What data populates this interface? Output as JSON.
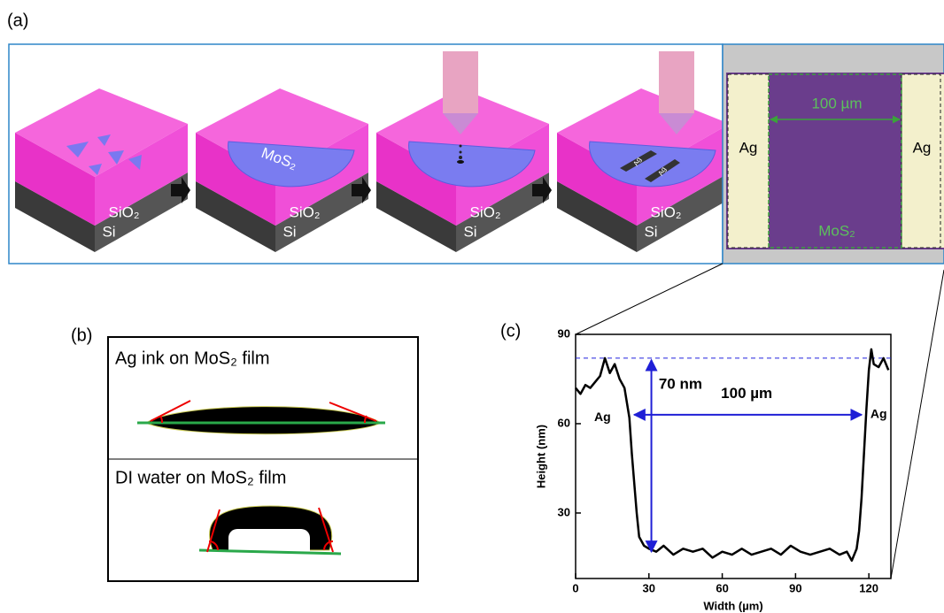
{
  "panel_a": {
    "label": "(a)",
    "tiles": [
      {
        "layers": [
          "SiO₂",
          "Si"
        ]
      },
      {
        "film": "MoS₂",
        "layers": [
          "SiO₂",
          "Si"
        ]
      },
      {
        "layers": [
          "SiO₂",
          "Si"
        ]
      },
      {
        "electrodes": [
          "Ag",
          "Ag"
        ],
        "layers": [
          "SiO₂",
          "Si"
        ]
      }
    ],
    "optical": {
      "electrodes": [
        "Ag",
        "Ag"
      ],
      "scale": "100 µm",
      "film": "MoS₂"
    }
  },
  "panel_b": {
    "label": "(b)",
    "captions": [
      "Ag ink on MoS₂ film",
      "DI water on MoS₂ film"
    ]
  },
  "chart_data": {
    "type": "line",
    "label": "(c)",
    "xlabel": "Width (µm)",
    "ylabel": "Height (nm)",
    "x": [
      0,
      2,
      4,
      6,
      8,
      10,
      12,
      14,
      16,
      18,
      20,
      22,
      23,
      24,
      25,
      26,
      28,
      30,
      33,
      36,
      40,
      44,
      48,
      52,
      56,
      60,
      64,
      68,
      72,
      76,
      80,
      84,
      88,
      92,
      96,
      100,
      104,
      108,
      111,
      113,
      115,
      116,
      117,
      118,
      119,
      120,
      121,
      122,
      124,
      126,
      128
    ],
    "series": [
      {
        "color": "#000000",
        "values": [
          72,
          70,
          73,
          72,
          74,
          76,
          82,
          77,
          80,
          75,
          72,
          62,
          50,
          40,
          30,
          22,
          19,
          18,
          17,
          19,
          16,
          18,
          17,
          18,
          15,
          17,
          16,
          18,
          16,
          17,
          18,
          16,
          19,
          17,
          16,
          17,
          18,
          16,
          17,
          14,
          18,
          24,
          35,
          50,
          65,
          78,
          85,
          80,
          79,
          82,
          78
        ]
      }
    ],
    "xlim": [
      0,
      129
    ],
    "ylim": [
      8,
      90
    ],
    "xticks": [
      0,
      30,
      60,
      90,
      120
    ],
    "yticks": [
      30,
      60,
      90
    ],
    "reference_line": 82,
    "annotations": [
      "70 nm",
      "100 µm",
      "Ag",
      "Ag"
    ]
  }
}
